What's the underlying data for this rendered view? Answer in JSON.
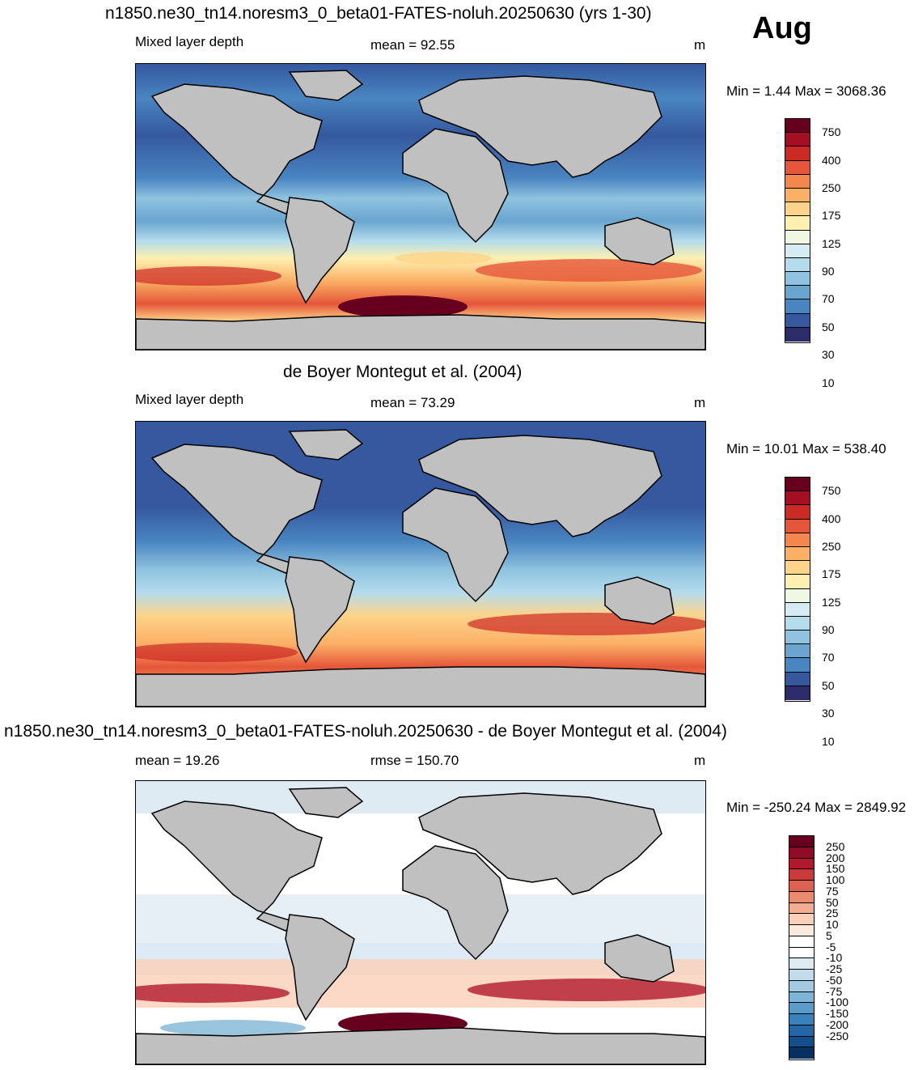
{
  "month_label": "Aug",
  "panels": [
    {
      "title": "n1850.ne30_tn14.noresm3_0_beta01-FATES-noluh.20250630 (yrs 1-30)",
      "left_label": "Mixed layer depth",
      "center_label": "mean =  92.55",
      "units": "m",
      "minmax": "Min =   1.44 Max = 3068.36",
      "colorbar": {
        "colors": [
          "#67001f",
          "#a50f24",
          "#cc2a25",
          "#e5563a",
          "#f4874e",
          "#fbb066",
          "#fdd48a",
          "#fdf0b0",
          "#f0f8e3",
          "#d6ecf3",
          "#b4dcec",
          "#8fc3df",
          "#6aa5cf",
          "#4985c1",
          "#35589f",
          "#2c2c6b"
        ],
        "labels": [
          "750",
          "400",
          "250",
          "175",
          "125",
          "90",
          "70",
          "50",
          "30",
          "10"
        ]
      }
    },
    {
      "title": "de Boyer Montegut et al. (2004)",
      "left_label": "Mixed layer depth",
      "center_label": "mean =  73.29",
      "units": "m",
      "minmax": "Min =  10.01 Max = 538.40",
      "colorbar": {
        "colors": [
          "#67001f",
          "#a50f24",
          "#cc2a25",
          "#e5563a",
          "#f4874e",
          "#fbb066",
          "#fdd48a",
          "#fdf0b0",
          "#f0f8e3",
          "#d6ecf3",
          "#b4dcec",
          "#8fc3df",
          "#6aa5cf",
          "#4985c1",
          "#35589f",
          "#2c2c6b"
        ],
        "labels": [
          "750",
          "400",
          "250",
          "175",
          "125",
          "90",
          "70",
          "50",
          "30",
          "10"
        ]
      }
    },
    {
      "title": "n1850.ne30_tn14.noresm3_0_beta01-FATES-noluh.20250630 - de Boyer Montegut et al. (2004)",
      "left_label": "mean =  19.26",
      "center_label": "rmse = 150.70",
      "units": "m",
      "minmax": "Min = -250.24 Max = 2849.92",
      "colorbar": {
        "colors": [
          "#67001f",
          "#8e0c25",
          "#b2182b",
          "#c93a3a",
          "#dc6150",
          "#ea8a6f",
          "#f4ac92",
          "#fbcfb8",
          "#fbe9de",
          "#ffffff",
          "#ffffff",
          "#deebf3",
          "#c3dcec",
          "#a2cae2",
          "#7eb5d6",
          "#5a9cc9",
          "#3a80b9",
          "#2466a6",
          "#134e8d",
          "#053061"
        ],
        "labels": [
          "250",
          "200",
          "150",
          "100",
          "75",
          "50",
          "25",
          "10",
          "5",
          "-5",
          "-10",
          "-25",
          "-50",
          "-75",
          "-100",
          "-150",
          "-200",
          "-250"
        ]
      }
    }
  ]
}
